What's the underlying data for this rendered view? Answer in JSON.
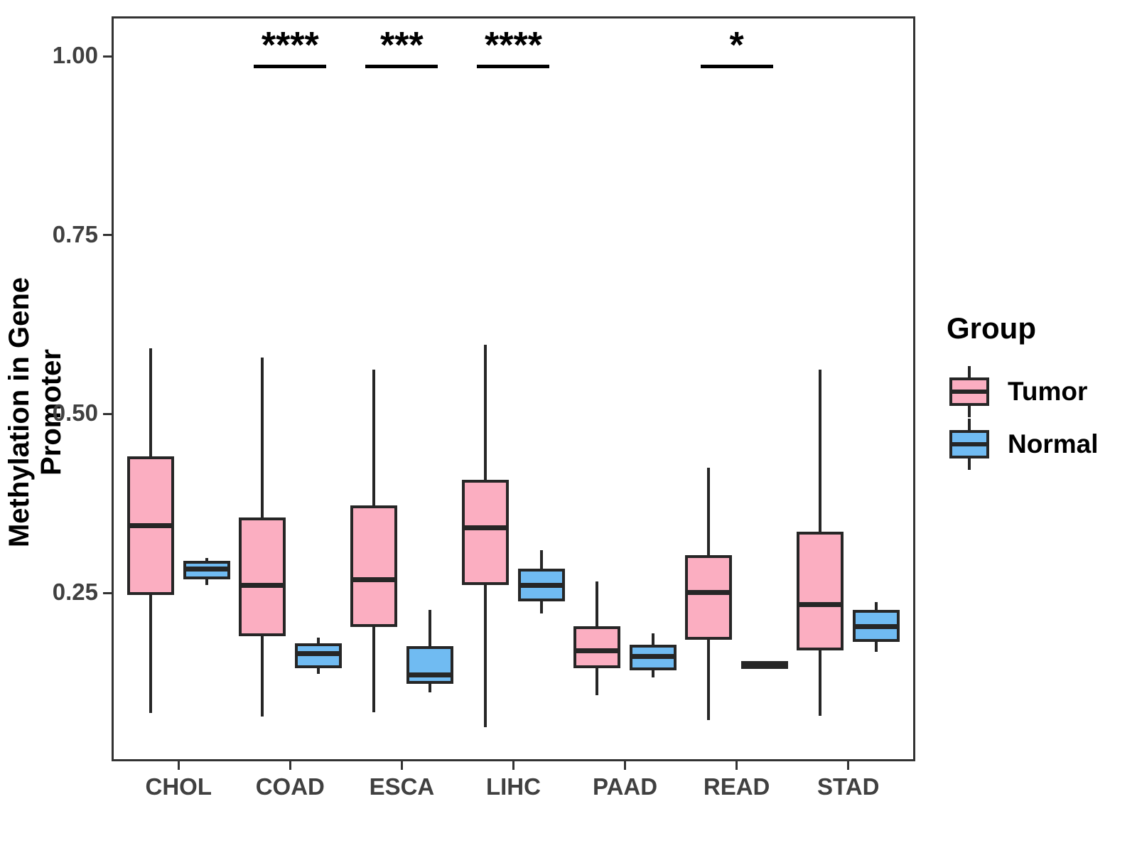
{
  "chart_data": {
    "type": "boxplot",
    "title": "",
    "xlabel": "",
    "ylabel": "Methylation in Gene Promoter",
    "y_axis": {
      "ticks": [
        0.25,
        0.5,
        0.75,
        1.0
      ],
      "tick_labels": [
        "0.25",
        "0.50",
        "0.75",
        "1.00"
      ],
      "range_min": 0.015,
      "range_max": 1.056,
      "grid": false
    },
    "categories": [
      "CHOL",
      "COAD",
      "ESCA",
      "LIHC",
      "PAAD",
      "READ",
      "STAD"
    ],
    "series": [
      {
        "name": "Tumor",
        "color": "#FBAEC1",
        "boxes": [
          {
            "category": "CHOL",
            "lo": 0.082,
            "q1": 0.251,
            "med": 0.344,
            "q3": 0.437,
            "hi": 0.592
          },
          {
            "category": "COAD",
            "lo": 0.077,
            "q1": 0.193,
            "med": 0.261,
            "q3": 0.351,
            "hi": 0.579
          },
          {
            "category": "ESCA",
            "lo": 0.083,
            "q1": 0.206,
            "med": 0.268,
            "q3": 0.368,
            "hi": 0.562
          },
          {
            "category": "LIHC",
            "lo": 0.062,
            "q1": 0.265,
            "med": 0.341,
            "q3": 0.404,
            "hi": 0.597
          },
          {
            "category": "PAAD",
            "lo": 0.107,
            "q1": 0.149,
            "med": 0.169,
            "q3": 0.199,
            "hi": 0.266
          },
          {
            "category": "READ",
            "lo": 0.072,
            "q1": 0.189,
            "med": 0.251,
            "q3": 0.299,
            "hi": 0.425
          },
          {
            "category": "STAD",
            "lo": 0.078,
            "q1": 0.174,
            "med": 0.234,
            "q3": 0.332,
            "hi": 0.562
          }
        ]
      },
      {
        "name": "Normal",
        "color": "#70BBF2",
        "boxes": [
          {
            "category": "CHOL",
            "lo": 0.261,
            "q1": 0.273,
            "med": 0.283,
            "q3": 0.291,
            "hi": 0.299
          },
          {
            "category": "COAD",
            "lo": 0.137,
            "q1": 0.149,
            "med": 0.165,
            "q3": 0.176,
            "hi": 0.188
          },
          {
            "category": "ESCA",
            "lo": 0.111,
            "q1": 0.127,
            "med": 0.135,
            "q3": 0.172,
            "hi": 0.226
          },
          {
            "category": "LIHC",
            "lo": 0.221,
            "q1": 0.242,
            "med": 0.261,
            "q3": 0.28,
            "hi": 0.31
          },
          {
            "category": "PAAD",
            "lo": 0.132,
            "q1": 0.146,
            "med": 0.161,
            "q3": 0.174,
            "hi": 0.193
          },
          {
            "category": "READ",
            "lo": 0.151,
            "q1": 0.151,
            "med": 0.151,
            "q3": 0.151,
            "hi": 0.151
          },
          {
            "category": "STAD",
            "lo": 0.168,
            "q1": 0.186,
            "med": 0.203,
            "q3": 0.222,
            "hi": 0.237
          }
        ]
      }
    ],
    "significance": [
      {
        "category": "COAD",
        "stars": "****"
      },
      {
        "category": "ESCA",
        "stars": "***"
      },
      {
        "category": "LIHC",
        "stars": "****"
      },
      {
        "category": "READ",
        "stars": "*"
      }
    ],
    "legend": {
      "title": "Group",
      "entries": [
        {
          "label": "Tumor",
          "color": "#FBAEC1"
        },
        {
          "label": "Normal",
          "color": "#70BBF2"
        }
      ],
      "position": "right"
    },
    "colors": {
      "tumor_fill": "#FBAEC1",
      "normal_fill": "#70BBF2",
      "line": "#262626",
      "panel_border": "#333333",
      "tick_text": "#404040"
    }
  }
}
